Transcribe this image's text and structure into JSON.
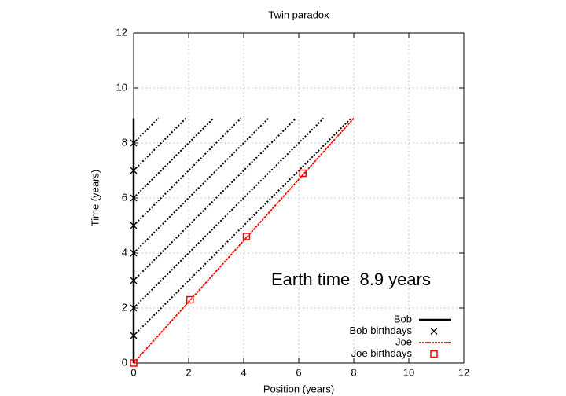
{
  "chart_data": {
    "type": "line",
    "title": "Twin paradox",
    "x_label": "Position (years)",
    "y_label": "Time (years)",
    "annotation": "Earth time  8.9 years",
    "xlim": [
      0,
      12
    ],
    "ylim": [
      0,
      12
    ],
    "xticks": [
      0,
      2,
      4,
      6,
      8,
      10,
      12
    ],
    "yticks": [
      0,
      2,
      4,
      6,
      8,
      10,
      12
    ],
    "grid": true,
    "legend": "lower right",
    "series": [
      {
        "name": "Bob",
        "color": "#000000",
        "marker": "line",
        "x": [
          0,
          0
        ],
        "values": [
          0,
          8.9
        ]
      },
      {
        "name": "Bob birthdays",
        "color": "#000000",
        "marker": "x",
        "x": [
          0,
          0,
          0,
          0,
          0,
          0,
          0,
          0
        ],
        "values": [
          1,
          2,
          3,
          4,
          5,
          6,
          7,
          8
        ]
      },
      {
        "name": "Joe",
        "color": "#ff0000",
        "marker": "dot-line",
        "x": [
          0,
          8.0
        ],
        "values": [
          0,
          8.9
        ]
      },
      {
        "name": "Joe birthdays",
        "color": "#ff0000",
        "marker": "square",
        "x": [
          0,
          2.05,
          4.1,
          6.15
        ],
        "values": [
          0,
          2.3,
          4.6,
          6.9
        ]
      },
      {
        "color": "#000000",
        "marker": "dotted",
        "x": [
          0,
          7.9
        ],
        "values": [
          1,
          8.9
        ]
      },
      {
        "color": "#000000",
        "marker": "dotted",
        "x": [
          0,
          6.9
        ],
        "values": [
          2,
          8.9
        ]
      },
      {
        "color": "#000000",
        "marker": "dotted",
        "x": [
          0,
          5.9
        ],
        "values": [
          3,
          8.9
        ]
      },
      {
        "color": "#000000",
        "marker": "dotted",
        "x": [
          0,
          4.9
        ],
        "values": [
          4,
          8.9
        ]
      },
      {
        "color": "#000000",
        "marker": "dotted",
        "x": [
          0,
          3.9
        ],
        "values": [
          5,
          8.9
        ]
      },
      {
        "color": "#000000",
        "marker": "dotted",
        "x": [
          0,
          2.9
        ],
        "values": [
          6,
          8.9
        ]
      },
      {
        "color": "#000000",
        "marker": "dotted",
        "x": [
          0,
          1.9
        ],
        "values": [
          7,
          8.9
        ]
      },
      {
        "color": "#000000",
        "marker": "dotted",
        "x": [
          0,
          0.9
        ],
        "values": [
          8,
          8.9
        ]
      }
    ]
  }
}
